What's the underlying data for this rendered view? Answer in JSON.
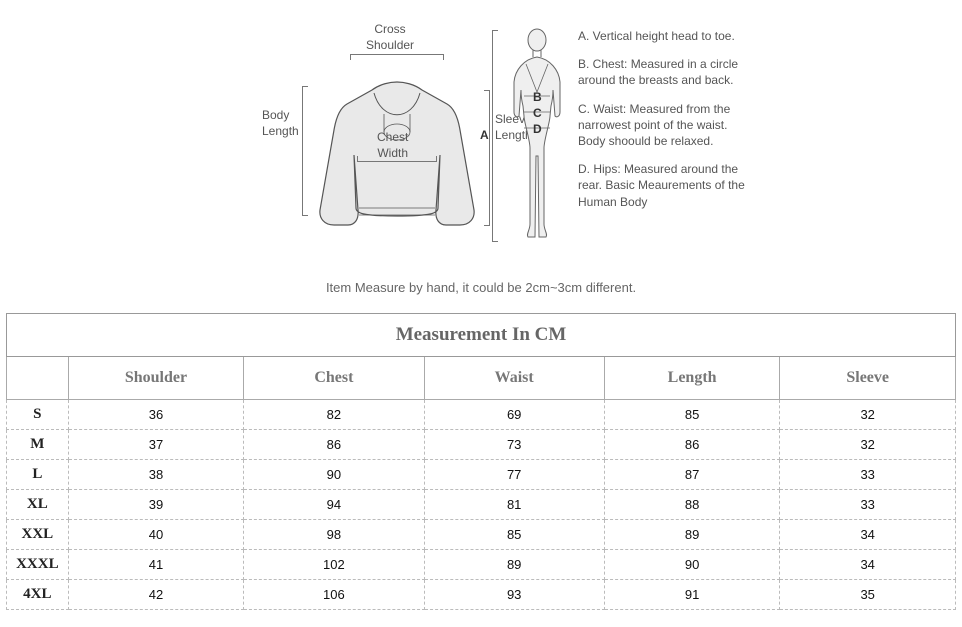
{
  "diagram": {
    "cross_shoulder": "Cross\nShoulder",
    "body_length": "Body\nLength",
    "chest_width": "Chest\nWidth",
    "sleeve_length": "Sleeve\nLength",
    "A": "A",
    "B": "B",
    "C": "C",
    "D": "D"
  },
  "definitions": {
    "A": "A. Vertical height head to toe.",
    "B": "B. Chest: Measured in a circle around the breasts and back.",
    "C": "C. Waist: Measured from the narrowest point of the waist. Body shoould be relaxed.",
    "D": "D. Hips: Measured around the rear. Basic Meaurements of the Human Body"
  },
  "note": "Item Measure by hand, it could be 2cm~3cm different.",
  "table": {
    "title": "Measurement In CM",
    "columns": [
      "",
      "Shoulder",
      "Chest",
      "Waist",
      "Length",
      "Sleeve"
    ],
    "rows": [
      [
        "S",
        "36",
        "82",
        "69",
        "85",
        "32"
      ],
      [
        "M",
        "37",
        "86",
        "73",
        "86",
        "32"
      ],
      [
        "L",
        "38",
        "90",
        "77",
        "87",
        "33"
      ],
      [
        "XL",
        "39",
        "94",
        "81",
        "88",
        "33"
      ],
      [
        "XXL",
        "40",
        "98",
        "85",
        "89",
        "34"
      ],
      [
        "XXXL",
        "41",
        "102",
        "89",
        "90",
        "34"
      ],
      [
        "4XL",
        "42",
        "106",
        "93",
        "91",
        "35"
      ]
    ],
    "col_widths_pct": [
      6.5,
      18.5,
      19,
      19,
      18.5,
      18.5
    ],
    "title_color": "#666666",
    "header_color": "#777777",
    "border_color": "#aaaaaa",
    "dashed_color": "#bbbbbb",
    "value_font": "Verdana",
    "header_font": "Times New Roman"
  },
  "svg": {
    "garment_fill": "#e9e9e9",
    "garment_stroke": "#555555",
    "body_fill": "#efefef",
    "body_stroke": "#666666",
    "guide_stroke": "#777777"
  }
}
